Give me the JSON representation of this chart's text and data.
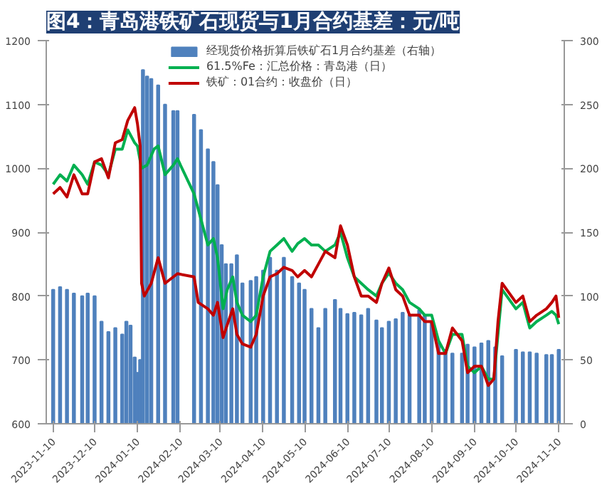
{
  "chart_data": {
    "type": "line",
    "title": "图4：青岛港铁矿石现货与1月合约基差：元/吨",
    "series": [
      {
        "name": "经现货价格折算后铁矿石1月合约基差（右轴）",
        "type": "bar",
        "axis": "y2",
        "color": "#4f81bd",
        "x": [
          "2023-11-10",
          "2023-11-15",
          "2023-11-20",
          "2023-11-25",
          "2023-12-01",
          "2023-12-05",
          "2023-12-10",
          "2023-12-15",
          "2023-12-20",
          "2023-12-25",
          "2023-12-30",
          "2024-01-02",
          "2024-01-05",
          "2024-01-08",
          "2024-01-10",
          "2024-01-12",
          "2024-01-14",
          "2024-01-17",
          "2024-01-20",
          "2024-01-25",
          "2024-01-30",
          "2024-02-05",
          "2024-02-08",
          "2024-02-20",
          "2024-02-25",
          "2024-03-01",
          "2024-03-05",
          "2024-03-08",
          "2024-03-11",
          "2024-03-14",
          "2024-03-18",
          "2024-03-22",
          "2024-03-26",
          "2024-04-01",
          "2024-04-05",
          "2024-04-10",
          "2024-04-15",
          "2024-04-20",
          "2024-04-25",
          "2024-05-01",
          "2024-05-06",
          "2024-05-10",
          "2024-05-15",
          "2024-05-20",
          "2024-05-25",
          "2024-06-01",
          "2024-06-05",
          "2024-06-10",
          "2024-06-15",
          "2024-06-20",
          "2024-06-25",
          "2024-07-01",
          "2024-07-05",
          "2024-07-10",
          "2024-07-15",
          "2024-07-20",
          "2024-07-25",
          "2024-08-01",
          "2024-08-05",
          "2024-08-10",
          "2024-08-15",
          "2024-08-20",
          "2024-08-25",
          "2024-09-01",
          "2024-09-05",
          "2024-09-10",
          "2024-09-15",
          "2024-09-20",
          "2024-09-25",
          "2024-09-30",
          "2024-10-10",
          "2024-10-15",
          "2024-10-20",
          "2024-10-25",
          "2024-11-01",
          "2024-11-05",
          "2024-11-10"
        ],
        "values": [
          105,
          107,
          105,
          102,
          100,
          102,
          100,
          80,
          72,
          75,
          70,
          80,
          77,
          52,
          40,
          50,
          277,
          272,
          270,
          265,
          250,
          245,
          245,
          242,
          230,
          215,
          205,
          187,
          140,
          125,
          125,
          132,
          110,
          112,
          115,
          120,
          130,
          120,
          130,
          115,
          110,
          105,
          90,
          75,
          90,
          97,
          90,
          86,
          87,
          85,
          90,
          81,
          75,
          80,
          82,
          87,
          85,
          89,
          85,
          80,
          63,
          58,
          55,
          55,
          62,
          60,
          63,
          65,
          60,
          53,
          58,
          56,
          56,
          55,
          54,
          54,
          58
        ]
      },
      {
        "name": "61.5%Fe：汇总价格：青岛港（日）",
        "color": "#00b050",
        "x": [
          "2023-11-10",
          "2023-11-15",
          "2023-11-20",
          "2023-11-25",
          "2023-12-01",
          "2023-12-05",
          "2023-12-10",
          "2023-12-15",
          "2023-12-20",
          "2023-12-25",
          "2023-12-30",
          "2024-01-03",
          "2024-01-08",
          "2024-01-10",
          "2024-01-13",
          "2024-01-17",
          "2024-01-22",
          "2024-01-25",
          "2024-01-30",
          "2024-02-05",
          "2024-02-08",
          "2024-02-20",
          "2024-02-25",
          "2024-03-01",
          "2024-03-05",
          "2024-03-08",
          "2024-03-12",
          "2024-03-15",
          "2024-03-19",
          "2024-03-22",
          "2024-03-26",
          "2024-04-01",
          "2024-04-05",
          "2024-04-10",
          "2024-04-15",
          "2024-04-20",
          "2024-04-25",
          "2024-05-01",
          "2024-05-05",
          "2024-05-10",
          "2024-05-15",
          "2024-05-20",
          "2024-05-25",
          "2024-06-01",
          "2024-06-05",
          "2024-06-10",
          "2024-06-15",
          "2024-06-20",
          "2024-06-25",
          "2024-07-01",
          "2024-07-05",
          "2024-07-10",
          "2024-07-15",
          "2024-07-20",
          "2024-07-25",
          "2024-08-01",
          "2024-08-05",
          "2024-08-10",
          "2024-08-15",
          "2024-08-20",
          "2024-08-25",
          "2024-09-01",
          "2024-09-05",
          "2024-09-10",
          "2024-09-15",
          "2024-09-20",
          "2024-09-24",
          "2024-09-27",
          "2024-09-30",
          "2024-10-10",
          "2024-10-15",
          "2024-10-20",
          "2024-10-25",
          "2024-11-01",
          "2024-11-05",
          "2024-11-08",
          "2024-11-10"
        ],
        "values": [
          975,
          990,
          980,
          1005,
          990,
          975,
          1010,
          1005,
          990,
          1030,
          1030,
          1060,
          1040,
          1035,
          1000,
          1005,
          1030,
          1035,
          990,
          1005,
          1015,
          960,
          920,
          880,
          890,
          860,
          780,
          810,
          830,
          790,
          770,
          760,
          770,
          830,
          870,
          880,
          890,
          870,
          882,
          890,
          880,
          880,
          870,
          880,
          900,
          860,
          830,
          820,
          810,
          800,
          820,
          836,
          820,
          810,
          790,
          780,
          770,
          770,
          730,
          710,
          740,
          740,
          690,
          680,
          690,
          670,
          670,
          740,
          810,
          780,
          790,
          750,
          760,
          770,
          776,
          770,
          756
        ]
      },
      {
        "name": "铁矿：01合约：收盘价（日）",
        "color": "#c00000",
        "x": [
          "2023-11-10",
          "2023-11-15",
          "2023-11-20",
          "2023-11-25",
          "2023-12-01",
          "2023-12-05",
          "2023-12-10",
          "2023-12-15",
          "2023-12-20",
          "2023-12-25",
          "2023-12-30",
          "2024-01-03",
          "2024-01-08",
          "2024-01-10",
          "2024-01-12",
          "2024-01-13",
          "2024-01-15",
          "2024-01-20",
          "2024-01-25",
          "2024-01-30",
          "2024-02-05",
          "2024-02-08",
          "2024-02-20",
          "2024-02-23",
          "2024-03-01",
          "2024-03-05",
          "2024-03-08",
          "2024-03-12",
          "2024-03-15",
          "2024-03-19",
          "2024-03-22",
          "2024-03-26",
          "2024-04-01",
          "2024-04-05",
          "2024-04-10",
          "2024-04-15",
          "2024-04-20",
          "2024-04-25",
          "2024-05-01",
          "2024-05-05",
          "2024-05-10",
          "2024-05-15",
          "2024-05-20",
          "2024-05-25",
          "2024-06-01",
          "2024-06-05",
          "2024-06-10",
          "2024-06-15",
          "2024-06-20",
          "2024-06-25",
          "2024-07-01",
          "2024-07-05",
          "2024-07-10",
          "2024-07-15",
          "2024-07-20",
          "2024-07-25",
          "2024-08-01",
          "2024-08-05",
          "2024-08-10",
          "2024-08-15",
          "2024-08-20",
          "2024-08-25",
          "2024-09-01",
          "2024-09-05",
          "2024-09-10",
          "2024-09-15",
          "2024-09-20",
          "2024-09-24",
          "2024-09-27",
          "2024-09-30",
          "2024-10-10",
          "2024-10-15",
          "2024-10-20",
          "2024-10-25",
          "2024-11-01",
          "2024-11-05",
          "2024-11-08",
          "2024-11-10"
        ],
        "values": [
          960,
          970,
          955,
          990,
          960,
          960,
          1010,
          1015,
          985,
          1040,
          1045,
          1075,
          1095,
          1070,
          1035,
          820,
          800,
          820,
          860,
          820,
          830,
          835,
          830,
          790,
          780,
          770,
          790,
          735,
          755,
          780,
          740,
          725,
          720,
          740,
          800,
          830,
          835,
          845,
          840,
          830,
          840,
          830,
          850,
          870,
          860,
          910,
          880,
          830,
          800,
          800,
          790,
          820,
          844,
          810,
          800,
          770,
          770,
          760,
          760,
          710,
          710,
          750,
          730,
          680,
          690,
          690,
          660,
          670,
          760,
          820,
          790,
          800,
          760,
          770,
          780,
          790,
          800,
          766
        ]
      }
    ],
    "xlim": [
      "2023-11-05",
      "2024-11-14"
    ],
    "xticks": [
      "2023-11-10",
      "2023-12-10",
      "2024-01-10",
      "2024-02-10",
      "2024-03-10",
      "2024-04-10",
      "2024-05-10",
      "2024-06-10",
      "2024-07-10",
      "2024-08-10",
      "2024-09-10",
      "2024-10-10",
      "2024-11-10"
    ],
    "ylim": [
      600,
      1200
    ],
    "yticks": [
      600,
      700,
      800,
      900,
      1000,
      1100,
      1200
    ],
    "y2lim": [
      0,
      300
    ],
    "y2ticks": [
      0,
      50,
      100,
      150,
      200,
      250,
      300
    ],
    "grid": false,
    "legend": "top",
    "marker": "none",
    "line_style": "solid"
  }
}
